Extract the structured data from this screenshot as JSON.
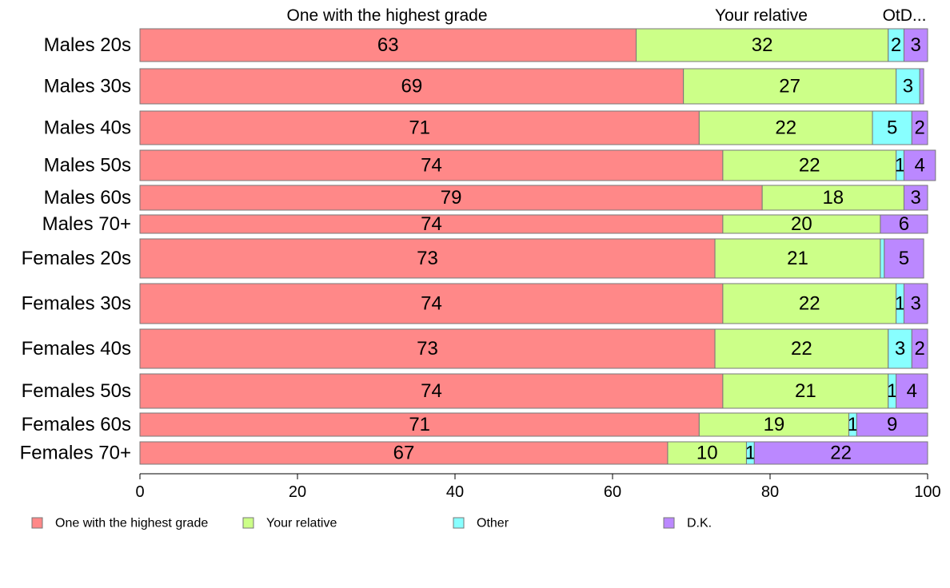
{
  "chart_data": {
    "type": "bar",
    "orientation": "horizontal",
    "stacked": true,
    "percent": true,
    "xlim": [
      0,
      100
    ],
    "x_ticks": [
      0,
      20,
      40,
      60,
      80,
      100
    ],
    "grid": false,
    "legend_position": "bottom",
    "top_labels": [
      "One with the highest grade",
      "Your relative",
      "OtD..."
    ],
    "categories": [
      "Males 20s",
      "Males 30s",
      "Males 40s",
      "Males 50s",
      "Males 60s",
      "Males 70+",
      "Females 20s",
      "Females 30s",
      "Females 40s",
      "Females 50s",
      "Females 60s",
      "Females 70+"
    ],
    "series": [
      {
        "name": "One with the highest grade",
        "color": "#ff8888",
        "values": [
          63,
          69,
          71,
          74,
          79,
          74,
          73,
          74,
          73,
          74,
          71,
          67
        ]
      },
      {
        "name": "Your relative",
        "color": "#ccff88",
        "values": [
          32,
          27,
          22,
          22,
          18,
          20,
          21,
          22,
          22,
          21,
          19,
          10
        ]
      },
      {
        "name": "Other",
        "color": "#88ffff",
        "values": [
          2,
          3,
          5,
          1,
          0,
          0,
          0.5,
          1,
          3,
          1,
          1,
          1
        ]
      },
      {
        "name": "D.K.",
        "color": "#bb88ff",
        "values": [
          3,
          0.5,
          2,
          4,
          3,
          6,
          5,
          3,
          2,
          4,
          9,
          22
        ]
      }
    ],
    "segment_labels": [
      [
        "63",
        "69",
        "71",
        "74",
        "79",
        "74",
        "73",
        "74",
        "73",
        "74",
        "71",
        "67"
      ],
      [
        "32",
        "27",
        "22",
        "22",
        "18",
        "20",
        "21",
        "22",
        "22",
        "21",
        "19",
        "10"
      ],
      [
        "2",
        "3",
        "5",
        "1",
        "",
        "",
        "",
        "1",
        "3",
        "1",
        "1",
        "1"
      ],
      [
        "3",
        "",
        "2",
        "4",
        "3",
        "6",
        "5",
        "3",
        "2",
        "4",
        "9",
        "22"
      ]
    ]
  }
}
